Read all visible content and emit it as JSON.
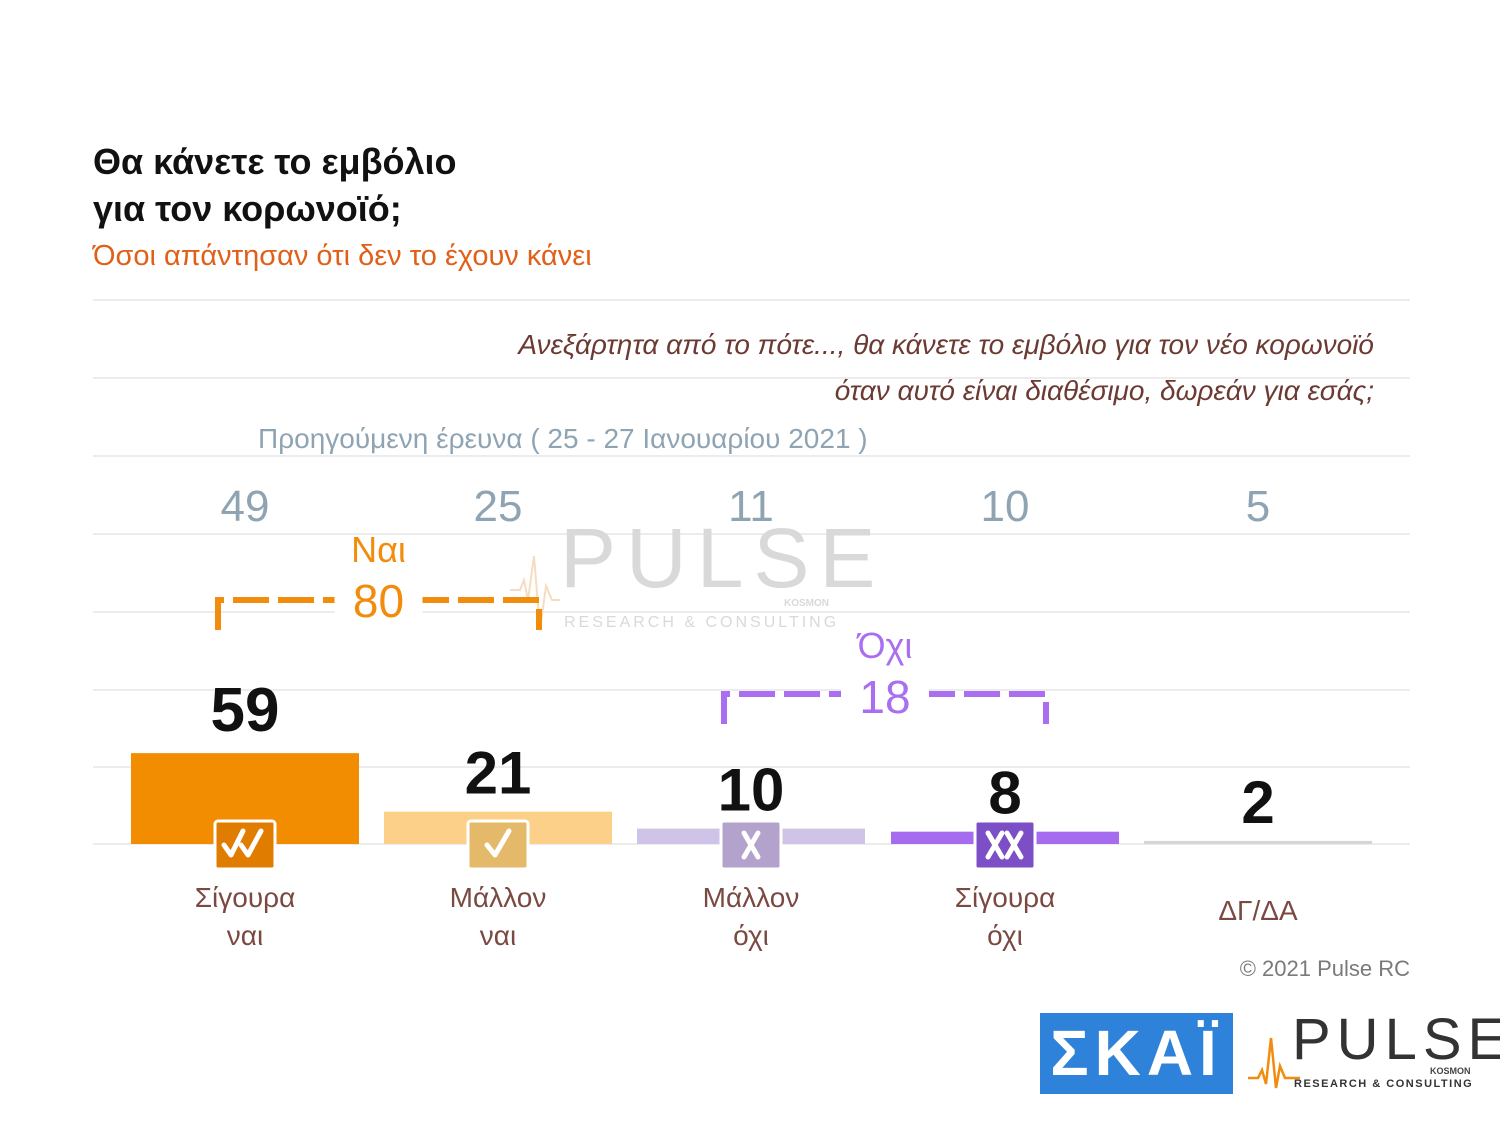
{
  "title_line1": "Θα κάνετε το εμβόλιο",
  "title_line2": "για τον κορωνοϊό;",
  "subtitle": "Όσοι απάντησαν ότι δεν το έχουν κάνει",
  "question_line1": "Ανεξάρτητα από το πότε..., θα κάνετε το εμβόλιο για τον νέο κορωνοϊό",
  "question_line2": "όταν αυτό είναι διαθέσιμο, δωρεάν για εσάς;",
  "previous_survey_label": "Προηγούμενη έρευνα  ( 25 - 27  Ιανουαρίου  2021 )",
  "copyright": "© 2021 Pulse RC",
  "logos": {
    "skai": "ΣΚΑΪ",
    "pulse": "PULSE",
    "pulse_kosmos": "KOSMON",
    "pulse_sub": "RESEARCH & CONSULTING"
  },
  "watermark": {
    "pulse": "PULSE",
    "kosmos": "KOSMON",
    "sub": "RESEARCH & CONSULTING"
  },
  "groups": {
    "yes": {
      "label": "Ναι",
      "value": "80",
      "color": "#f28c0c"
    },
    "no": {
      "label": "Όχι",
      "value": "18",
      "color": "#a96ff0"
    }
  },
  "chart_data": {
    "type": "bar",
    "categories": [
      {
        "line1": "Σίγουρα",
        "line2": "ναι"
      },
      {
        "line1": "Μάλλον",
        "line2": "ναι"
      },
      {
        "line1": "Μάλλον",
        "line2": "όχι"
      },
      {
        "line1": "Σίγουρα",
        "line2": "όχι"
      },
      {
        "line1": "ΔΓ/ΔΑ",
        "line2": ""
      }
    ],
    "values": [
      59,
      21,
      10,
      8,
      2
    ],
    "previous_values": [
      49,
      25,
      11,
      10,
      5
    ],
    "bar_colors": [
      "#f28c00",
      "#fdd08a",
      "#cfc3e8",
      "#a66cf0",
      "#d6d6d6"
    ],
    "icons": [
      "double-check-icon",
      "check-icon",
      "cross-icon",
      "double-cross-icon",
      ""
    ],
    "icon_colors": [
      "#e07c00",
      "#e5b96a",
      "#b3a3cc",
      "#7d4fc6",
      ""
    ],
    "grid": true,
    "legend": "none"
  }
}
